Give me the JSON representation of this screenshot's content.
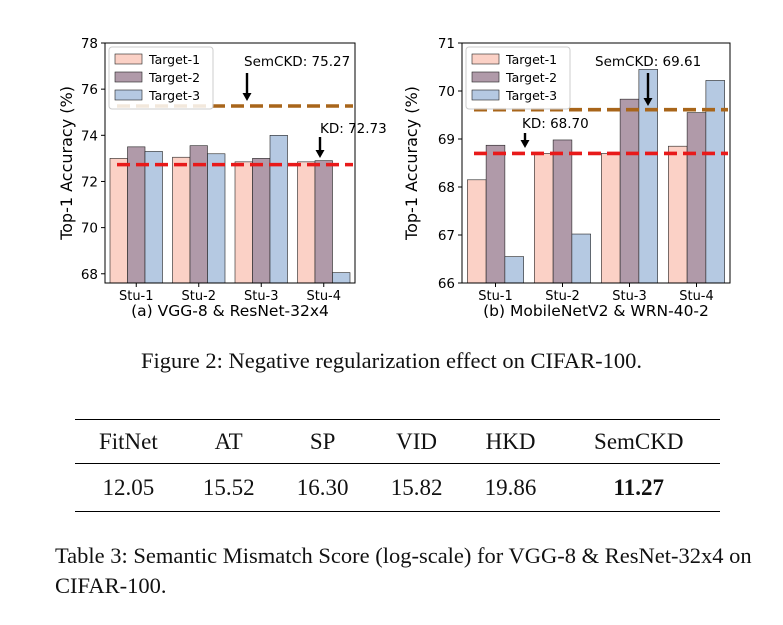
{
  "colors": {
    "target1": "#fbd1c6",
    "target2": "#b09aa9",
    "target3": "#b5c9e2",
    "semckd_line": "#a8651a",
    "kd_line": "#e81a1a",
    "bar_edge": "#222222"
  },
  "chart_data": [
    {
      "type": "bar",
      "subtitle": "(a) VGG-8 & ResNet-32x4",
      "ylabel": "Top-1 Accuracy (%)",
      "ylim": [
        67.6,
        78
      ],
      "yticks": [
        68,
        70,
        72,
        74,
        76,
        78
      ],
      "categories": [
        "Stu-1",
        "Stu-2",
        "Stu-3",
        "Stu-4"
      ],
      "series": [
        {
          "name": "Target-1",
          "values": [
            73.0,
            73.05,
            72.85,
            72.85
          ]
        },
        {
          "name": "Target-2",
          "values": [
            73.5,
            73.55,
            73.0,
            72.9
          ]
        },
        {
          "name": "Target-3",
          "values": [
            73.3,
            73.2,
            74.0,
            68.05
          ]
        }
      ],
      "reference_lines": [
        {
          "name": "SemCKD",
          "value": 75.27,
          "label": "SemCKD: 75.27"
        },
        {
          "name": "KD",
          "value": 72.73,
          "label": "KD: 72.73"
        }
      ],
      "legend_position": "top-left"
    },
    {
      "type": "bar",
      "subtitle": "(b) MobileNetV2 & WRN-40-2",
      "ylabel": "Top-1 Accuracy (%)",
      "ylim": [
        66,
        71
      ],
      "yticks": [
        66,
        67,
        68,
        69,
        70,
        71
      ],
      "categories": [
        "Stu-1",
        "Stu-2",
        "Stu-3",
        "Stu-4"
      ],
      "series": [
        {
          "name": "Target-1",
          "values": [
            68.15,
            68.7,
            68.7,
            68.85
          ]
        },
        {
          "name": "Target-2",
          "values": [
            68.87,
            68.98,
            69.83,
            69.55
          ]
        },
        {
          "name": "Target-3",
          "values": [
            66.55,
            67.02,
            70.45,
            70.22
          ]
        }
      ],
      "reference_lines": [
        {
          "name": "SemCKD",
          "value": 69.61,
          "label": "SemCKD: 69.61"
        },
        {
          "name": "KD",
          "value": 68.7,
          "label": "KD: 68.70"
        }
      ],
      "legend_position": "top-left"
    }
  ],
  "figure_caption": "Figure 2: Negative regularization effect on CIFAR-100.",
  "table": {
    "headers": [
      "FitNet",
      "AT",
      "SP",
      "VID",
      "HKD",
      "SemCKD"
    ],
    "values": [
      "12.05",
      "15.52",
      "16.30",
      "15.82",
      "19.86",
      "11.27"
    ],
    "best_index": 5
  },
  "table_caption": "Table 3: Semantic Mismatch Score (log-scale) for VGG-8 & ResNet-32x4 on CIFAR-100."
}
